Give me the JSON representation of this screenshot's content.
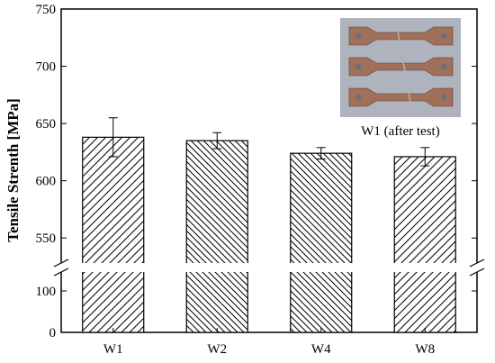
{
  "chart_data": {
    "type": "bar",
    "categories": [
      "W1",
      "W2",
      "W4",
      "W8"
    ],
    "values": [
      638,
      635,
      624,
      621
    ],
    "errors": [
      17,
      7,
      5,
      8
    ],
    "ylabel": "Tensile Strenth [MPa]",
    "xlabel": "",
    "y_axis_break": {
      "lower_range": [
        0,
        150
      ],
      "upper_range": [
        525,
        750
      ]
    },
    "y_ticks_lower": [
      0,
      100
    ],
    "y_ticks_upper": [
      550,
      600,
      650,
      700,
      750
    ],
    "y_tick_labels_lower": [
      "0",
      "100"
    ],
    "y_tick_labels_upper": [
      "550",
      "600",
      "650",
      "700",
      "750"
    ],
    "hatch": [
      "forward",
      "back",
      "back",
      "forward"
    ],
    "grid": false
  },
  "inset": {
    "caption": "W1 (after test)",
    "photo_background": "#aeb3bd",
    "specimen_color": "#a0705a"
  }
}
